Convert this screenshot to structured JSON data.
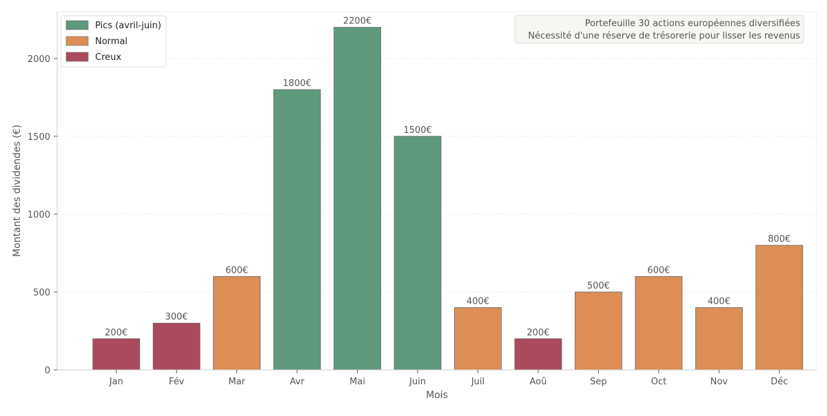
{
  "chart_data": {
    "type": "bar",
    "title": "",
    "xlabel": "Mois",
    "ylabel": "Montant des dividendes (€)",
    "ylim": [
      0,
      2300
    ],
    "yticks": [
      0,
      500,
      1000,
      1500,
      2000
    ],
    "grid": true,
    "legend_position": "top-left",
    "value_suffix": "€",
    "categories": [
      "Jan",
      "Fév",
      "Mar",
      "Avr",
      "Mai",
      "Juin",
      "Juil",
      "Aoû",
      "Sep",
      "Oct",
      "Nov",
      "Déc"
    ],
    "values": [
      200,
      300,
      600,
      1800,
      2200,
      1500,
      400,
      200,
      500,
      600,
      400,
      800
    ],
    "bar_groups": [
      "creux",
      "creux",
      "normal",
      "pics",
      "pics",
      "pics",
      "normal",
      "creux",
      "normal",
      "normal",
      "normal",
      "normal"
    ],
    "groups": {
      "pics": {
        "label": "Pics (avril-juin)",
        "color": "#5f997c"
      },
      "normal": {
        "label": "Normal",
        "color": "#dc8e55"
      },
      "creux": {
        "label": "Creux",
        "color": "#ab4a5c"
      }
    },
    "legend_order": [
      "pics",
      "normal",
      "creux"
    ],
    "annotation": {
      "lines": [
        "Portefeuille 30 actions européennes diversifiées",
        "Nécessité d'une réserve de trésorerie pour lisser les revenus"
      ],
      "position": "top-right"
    }
  },
  "colors": {
    "text": "#555555",
    "axis": "#cccccc",
    "grid": "#eeeeee",
    "bar_edge": "#666666",
    "annotation_bg": "#f7f6f2",
    "annotation_border": "#e0ddd5"
  }
}
